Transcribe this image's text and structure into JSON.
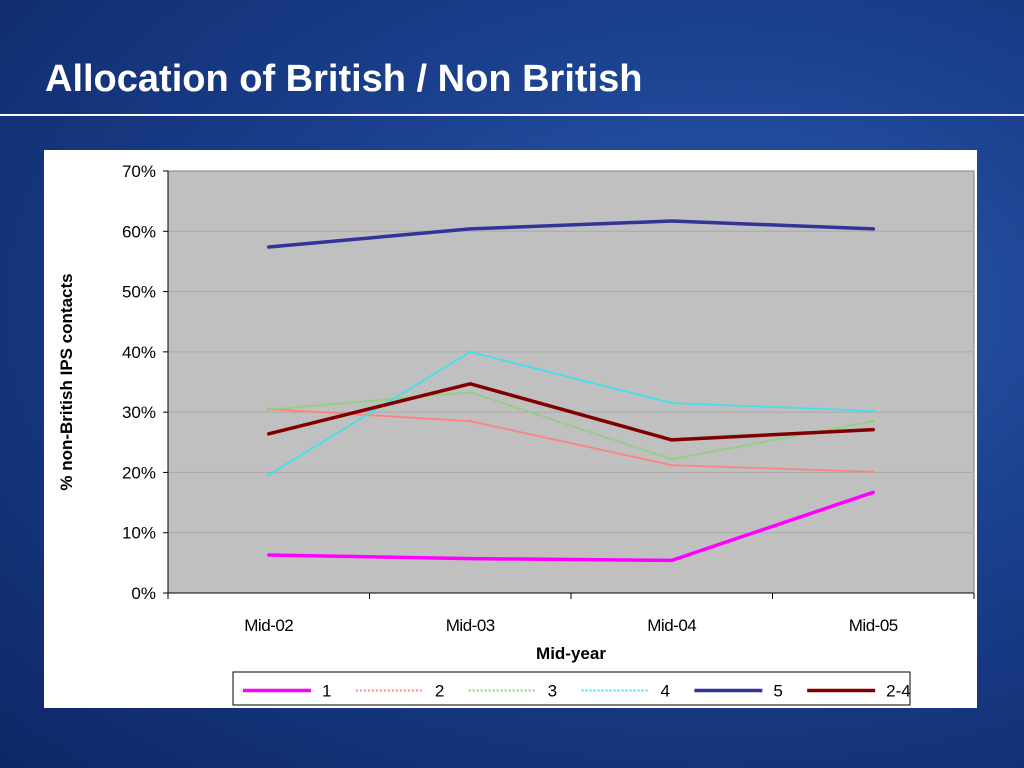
{
  "slide": {
    "title": "Allocation of British / Non British"
  },
  "chart_data": {
    "type": "line",
    "categories": [
      "Mid-02",
      "Mid-03",
      "Mid-04",
      "Mid-05"
    ],
    "xlabel": "Mid-year",
    "ylabel": "% non-British IPS contacts",
    "ylim": [
      0,
      0.7
    ],
    "yticks": [
      "0%",
      "10%",
      "20%",
      "30%",
      "40%",
      "50%",
      "60%",
      "70%"
    ],
    "grid": true,
    "legend_position": "bottom",
    "series": [
      {
        "name": "1",
        "values": [
          0.063,
          0.057,
          0.054,
          0.167
        ],
        "color": "#ff00ff",
        "style": "solid"
      },
      {
        "name": "2",
        "values": [
          0.305,
          0.285,
          0.212,
          0.201
        ],
        "color": "#ff8080",
        "style": "dotted"
      },
      {
        "name": "3",
        "values": [
          0.304,
          0.333,
          0.222,
          0.285
        ],
        "color": "#90d080",
        "style": "dotted"
      },
      {
        "name": "4",
        "values": [
          0.196,
          0.4,
          0.315,
          0.302
        ],
        "color": "#40e0f0",
        "style": "dotted"
      },
      {
        "name": "5",
        "values": [
          0.574,
          0.604,
          0.617,
          0.604
        ],
        "color": "#333399",
        "style": "solid"
      },
      {
        "name": "2-4",
        "values": [
          0.264,
          0.347,
          0.254,
          0.271
        ],
        "color": "#800000",
        "style": "solid"
      }
    ]
  }
}
